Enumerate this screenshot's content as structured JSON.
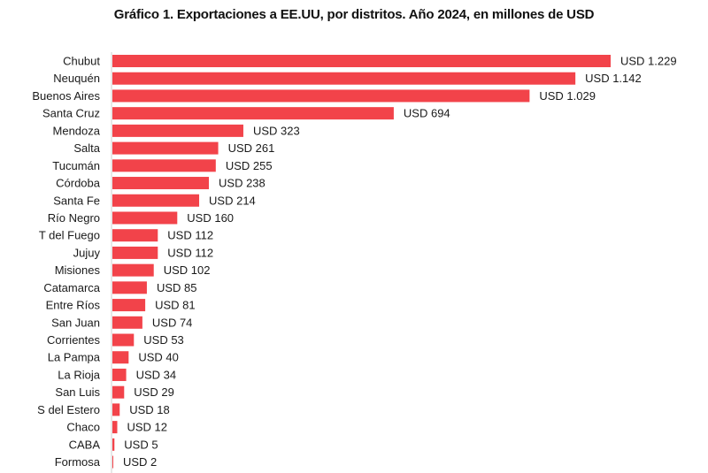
{
  "chart_data": {
    "type": "bar",
    "orientation": "horizontal",
    "title": "Gráfico 1. Exportaciones a EE.UU, por distritos. Año 2024, en millones de USD",
    "xlabel": "",
    "ylabel": "",
    "unit_prefix": "USD",
    "bar_color": "#f2434a",
    "grid": false,
    "legend": "none",
    "xlim": [
      0,
      1229
    ],
    "categories": [
      "Chubut",
      "Neuquén",
      "Buenos Aires",
      "Santa Cruz",
      "Mendoza",
      "Salta",
      "Tucumán",
      "Córdoba",
      "Santa Fe",
      "Río Negro",
      "T del Fuego",
      "Jujuy",
      "Misiones",
      "Catamarca",
      "Entre Ríos",
      "San Juan",
      "Corrientes",
      "La Pampa",
      "La Rioja",
      "San Luis",
      "S del Estero",
      "Chaco",
      "CABA",
      "Formosa"
    ],
    "values": [
      1229,
      1142,
      1029,
      694,
      323,
      261,
      255,
      238,
      214,
      160,
      112,
      112,
      102,
      85,
      81,
      74,
      53,
      40,
      34,
      29,
      18,
      12,
      5,
      2
    ],
    "value_labels": [
      "USD 1.229",
      "USD 1.142",
      "USD 1.029",
      "USD 694",
      "USD 323",
      "USD 261",
      "USD 255",
      "USD 238",
      "USD 214",
      "USD 160",
      "USD 112",
      "USD 112",
      "USD 102",
      "USD 85",
      "USD 81",
      "USD 74",
      "USD 53",
      "USD 40",
      "USD 34",
      "USD 29",
      "USD 18",
      "USD 12",
      "USD 5",
      "USD 2"
    ]
  }
}
